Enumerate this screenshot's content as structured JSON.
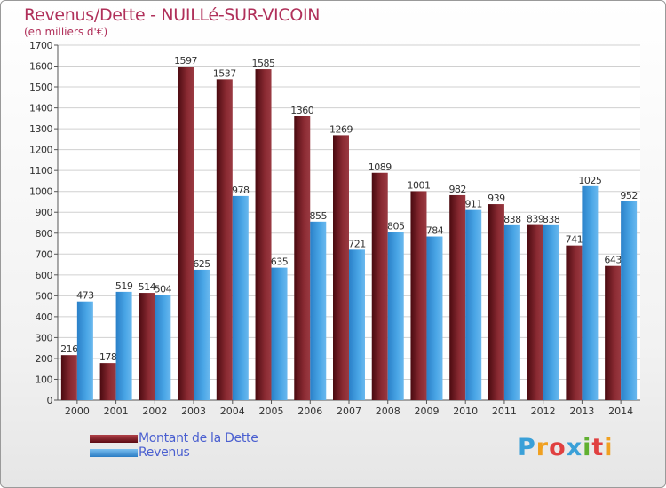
{
  "chart_data": {
    "type": "bar",
    "title": "Revenus/Dette - NUILLé-SUR-VICOIN",
    "subtitle": "(en milliers d'€)",
    "categories": [
      "2000",
      "2001",
      "2002",
      "2003",
      "2004",
      "2005",
      "2006",
      "2007",
      "2008",
      "2009",
      "2010",
      "2011",
      "2012",
      "2013",
      "2014"
    ],
    "series": [
      {
        "name": "Montant de la Dette",
        "color": "#7a1a22",
        "values": [
          216,
          178,
          514,
          1597,
          1537,
          1585,
          1360,
          1269,
          1089,
          1001,
          982,
          939,
          839,
          741,
          643
        ]
      },
      {
        "name": "Revenus",
        "color": "#3a96de",
        "values": [
          473,
          519,
          504,
          625,
          978,
          635,
          855,
          721,
          805,
          784,
          911,
          838,
          838,
          1025,
          952
        ]
      }
    ],
    "ylim": [
      0,
      1700
    ],
    "yticks": [
      0,
      100,
      200,
      300,
      400,
      500,
      600,
      700,
      800,
      900,
      1000,
      1100,
      1200,
      1300,
      1400,
      1500,
      1600,
      1700
    ],
    "grid": true,
    "legend_position": "bottom-left"
  },
  "logo": {
    "letters": [
      "P",
      "r",
      "o",
      "x",
      "i",
      "t",
      "i"
    ],
    "colors": [
      "#3aa0d8",
      "#f0a020",
      "#e04040",
      "#3aa0d8",
      "#60b030",
      "#e04040",
      "#f0a020"
    ]
  }
}
